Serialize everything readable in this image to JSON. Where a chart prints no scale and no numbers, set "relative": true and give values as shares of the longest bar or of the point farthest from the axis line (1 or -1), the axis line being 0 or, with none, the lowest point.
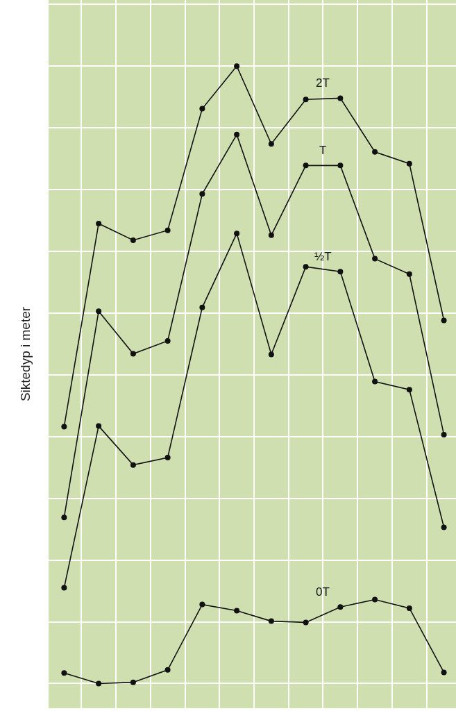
{
  "chart_data": {
    "type": "line",
    "ylabel": "Siktedyp i meter",
    "relative": true,
    "grid": true,
    "marker": "circle",
    "line_style": "solid",
    "legend": false,
    "categories": [
      null,
      null,
      null,
      null,
      null,
      null,
      null,
      null,
      null,
      null,
      null,
      null
    ],
    "series": [
      {
        "name": "2T",
        "color": "#111111",
        "values": [
          0.416,
          0.745,
          0.718,
          0.734,
          0.931,
          1.0,
          0.874,
          0.946,
          0.948,
          0.861,
          0.842,
          0.588
        ]
      },
      {
        "name": "T",
        "color": "#111111",
        "values": [
          0.269,
          0.603,
          0.534,
          0.555,
          0.793,
          0.889,
          0.726,
          0.839,
          0.839,
          0.688,
          0.663,
          0.403
        ]
      },
      {
        "name": "½T",
        "color": "#111111",
        "values": [
          0.155,
          0.417,
          0.354,
          0.366,
          0.609,
          0.729,
          0.533,
          0.675,
          0.667,
          0.489,
          0.476,
          0.253
        ]
      },
      {
        "name": "0T",
        "color": "#111111",
        "values": [
          0.017,
          0.0,
          0.002,
          0.022,
          0.128,
          0.118,
          0.101,
          0.099,
          0.124,
          0.136,
          0.122,
          0.018
        ]
      }
    ]
  }
}
